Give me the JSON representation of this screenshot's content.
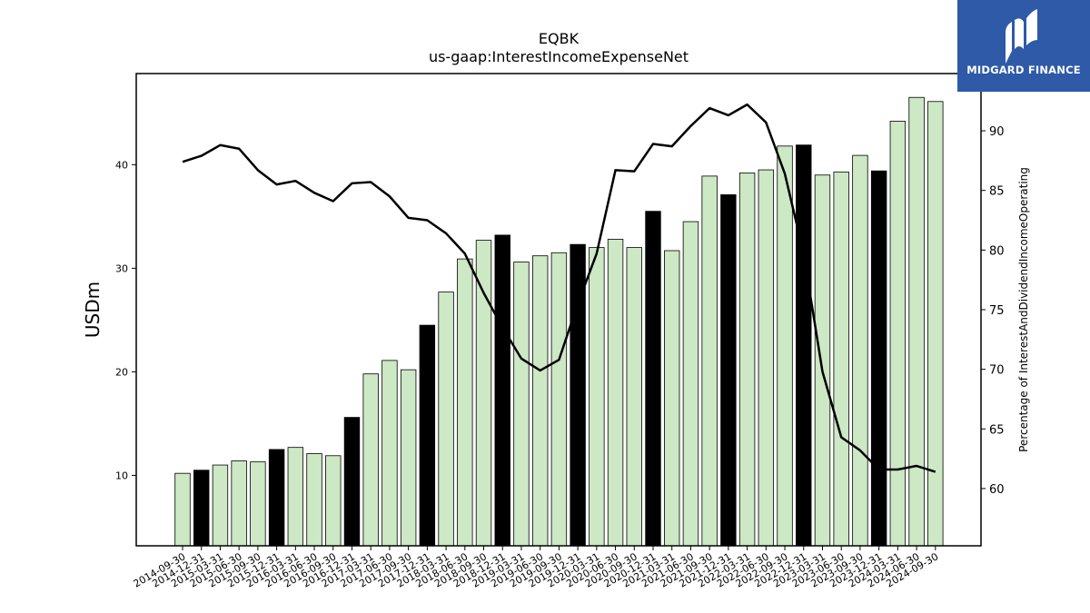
{
  "chart_data": {
    "type": "bar",
    "title": "EQBK",
    "subtitle": "us-gaap:InterestIncomeExpenseNet",
    "ylabel": "USDm",
    "y2label": "Percentage of InterestAndDividendIncomeOperating",
    "ylim": [
      3.2,
      48.8
    ],
    "y2lim": [
      55.2,
      94.8
    ],
    "yticks": [
      10,
      20,
      30,
      40
    ],
    "y2ticks": [
      60,
      65,
      70,
      75,
      80,
      85,
      90
    ],
    "categories": [
      "2014-09-30",
      "2014-12-31",
      "2015-03-31",
      "2015-06-30",
      "2015-09-30",
      "2015-12-31",
      "2016-03-31",
      "2016-06-30",
      "2016-09-30",
      "2016-12-31",
      "2017-03-31",
      "2017-06-30",
      "2017-09-30",
      "2017-12-31",
      "2018-03-31",
      "2018-06-30",
      "2018-09-30",
      "2018-12-31",
      "2019-03-31",
      "2019-06-30",
      "2019-09-30",
      "2019-12-31",
      "2020-03-31",
      "2020-06-30",
      "2020-09-30",
      "2020-12-31",
      "2021-03-31",
      "2021-06-30",
      "2021-09-30",
      "2021-12-31",
      "2022-03-31",
      "2022-06-30",
      "2022-09-30",
      "2022-12-31",
      "2023-03-31",
      "2023-06-30",
      "2023-09-30",
      "2023-12-31",
      "2024-03-31",
      "2024-06-30",
      "2024-09-30"
    ],
    "series": [
      {
        "type": "bar",
        "values": [
          10.2,
          10.5,
          11.0,
          11.4,
          11.3,
          12.5,
          12.7,
          12.1,
          11.9,
          15.6,
          19.8,
          21.1,
          20.2,
          24.5,
          27.7,
          30.9,
          32.7,
          33.2,
          30.6,
          31.2,
          31.5,
          32.3,
          32.0,
          32.8,
          32.0,
          35.5,
          31.7,
          34.5,
          38.9,
          37.1,
          39.2,
          39.5,
          41.8,
          41.9,
          39.0,
          39.3,
          40.9,
          39.4,
          44.2,
          46.5,
          46.1
        ],
        "highlight": [
          false,
          true,
          false,
          false,
          false,
          true,
          false,
          false,
          false,
          true,
          false,
          false,
          false,
          true,
          false,
          false,
          false,
          true,
          false,
          false,
          false,
          true,
          false,
          false,
          false,
          true,
          false,
          false,
          false,
          true,
          false,
          false,
          false,
          true,
          false,
          false,
          false,
          true,
          false,
          false,
          false
        ]
      },
      {
        "type": "line",
        "axis": "right",
        "values": [
          87.4,
          87.9,
          88.8,
          88.5,
          86.7,
          85.5,
          85.8,
          84.8,
          84.1,
          85.6,
          85.7,
          84.5,
          82.7,
          82.5,
          81.4,
          79.7,
          76.4,
          73.5,
          70.9,
          69.9,
          70.8,
          75.5,
          79.7,
          86.7,
          86.6,
          88.9,
          88.7,
          90.4,
          91.9,
          91.3,
          92.2,
          90.7,
          86.4,
          79.7,
          69.8,
          64.3,
          63.2,
          61.6,
          61.6,
          61.9,
          61.4
        ]
      }
    ],
    "colors": {
      "bar_fill": "#cce8c4",
      "bar_highlight": "#000000",
      "bar_edge": "#000000",
      "line": "#000000"
    }
  },
  "logo": {
    "text": "MIDGARD FINANCE",
    "icon": "midgard-m-icon",
    "background": "#2e5aa8"
  }
}
